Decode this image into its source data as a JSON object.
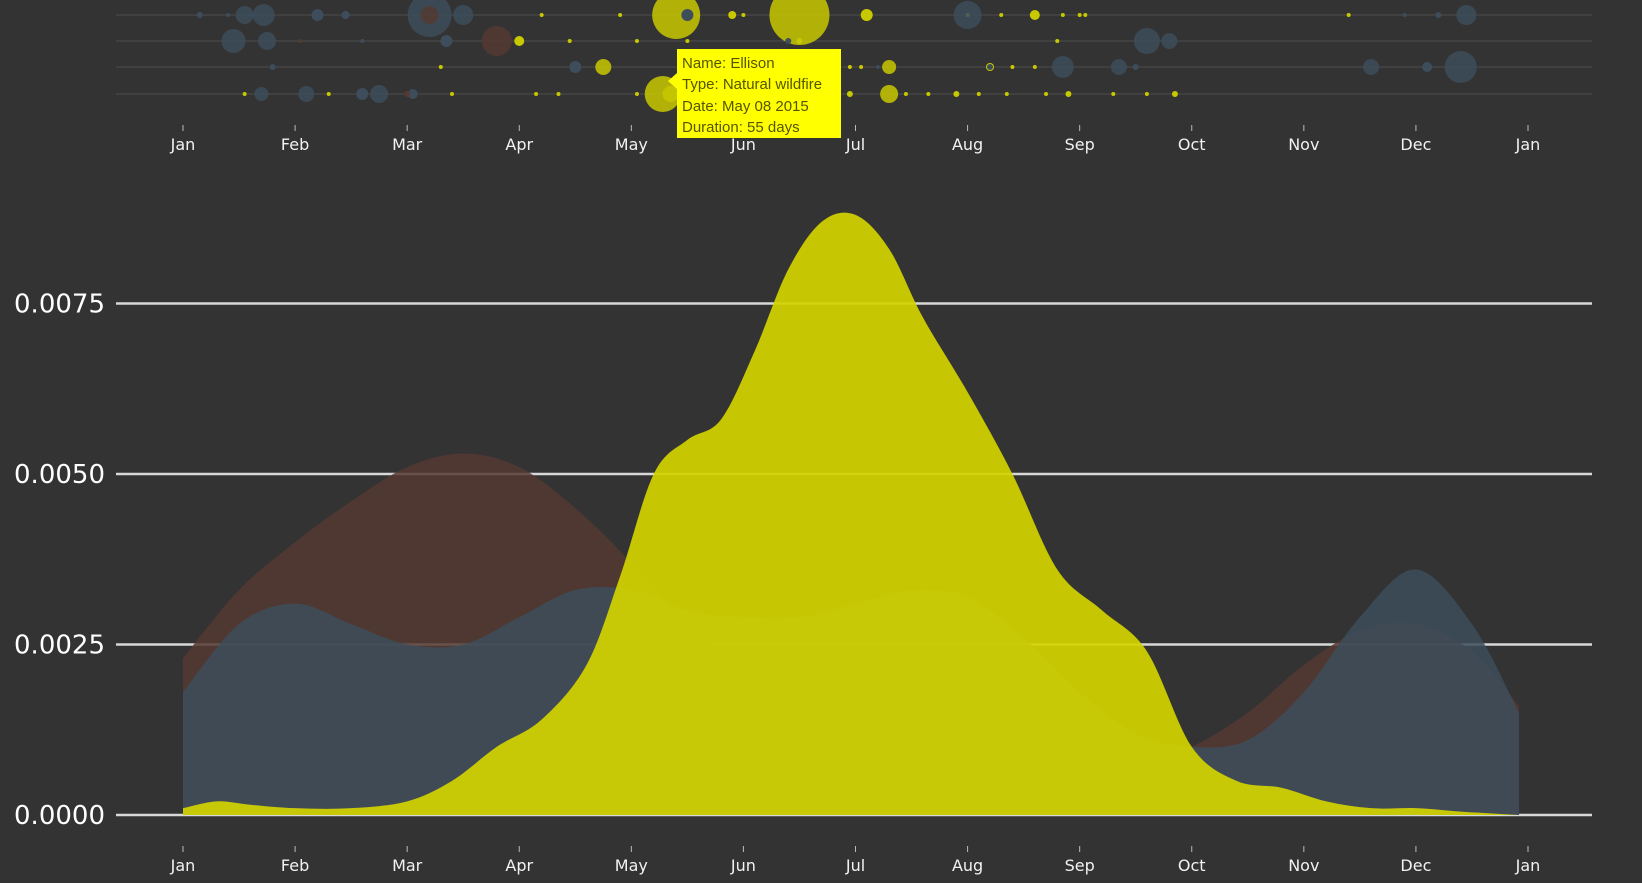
{
  "colors": {
    "background": "#333333",
    "gridline": "#d8d8d8",
    "axis_text": "#f2f2f2",
    "tooltip_bg": "#ffff00",
    "tooltip_text": "#555500"
  },
  "chart_data": [
    {
      "type": "scatter",
      "description_panel": "beeswarm of fires by date of year, 4 rows, bubble size = duration",
      "months": [
        "Jan",
        "Feb",
        "Mar",
        "Apr",
        "May",
        "Jun",
        "Jul",
        "Aug",
        "Sep",
        "Oct",
        "Nov",
        "Dec",
        "Jan"
      ],
      "series": [
        {
          "color": "#c8c800",
          "points": [
            {
              "m": 3.2,
              "row": 0,
              "r": 2
            },
            {
              "m": 3.9,
              "row": 0,
              "r": 2
            },
            {
              "m": 4.4,
              "row": 0,
              "r": 24
            },
            {
              "m": 4.9,
              "row": 0,
              "r": 4
            },
            {
              "m": 5.0,
              "row": 0,
              "r": 2
            },
            {
              "m": 5.5,
              "row": 0,
              "r": 30
            },
            {
              "m": 6.1,
              "row": 0,
              "r": 6
            },
            {
              "m": 7.0,
              "row": 0,
              "r": 2
            },
            {
              "m": 7.3,
              "row": 0,
              "r": 2
            },
            {
              "m": 7.6,
              "row": 0,
              "r": 5
            },
            {
              "m": 7.85,
              "row": 0,
              "r": 2
            },
            {
              "m": 8.0,
              "row": 0,
              "r": 2
            },
            {
              "m": 8.05,
              "row": 0,
              "r": 2
            },
            {
              "m": 10.4,
              "row": 0,
              "r": 2
            },
            {
              "m": 3.0,
              "row": 1,
              "r": 5
            },
            {
              "m": 3.45,
              "row": 1,
              "r": 2
            },
            {
              "m": 4.05,
              "row": 1,
              "r": 2
            },
            {
              "m": 4.5,
              "row": 1,
              "r": 2
            },
            {
              "m": 5.5,
              "row": 1,
              "r": 3
            },
            {
              "m": 7.8,
              "row": 1,
              "r": 2
            },
            {
              "m": 2.3,
              "row": 2,
              "r": 2
            },
            {
              "m": 3.75,
              "row": 2,
              "r": 8
            },
            {
              "m": 5.2,
              "row": 2,
              "r": 3
            },
            {
              "m": 5.95,
              "row": 2,
              "r": 2
            },
            {
              "m": 6.05,
              "row": 2,
              "r": 2
            },
            {
              "m": 6.3,
              "row": 2,
              "r": 7
            },
            {
              "m": 7.2,
              "row": 2,
              "r": 4
            },
            {
              "m": 7.4,
              "row": 2,
              "r": 2
            },
            {
              "m": 7.6,
              "row": 2,
              "r": 2
            },
            {
              "m": 0.55,
              "row": 3,
              "r": 2
            },
            {
              "m": 1.3,
              "row": 3,
              "r": 2
            },
            {
              "m": 2.0,
              "row": 3,
              "r": 2
            },
            {
              "m": 2.4,
              "row": 3,
              "r": 2
            },
            {
              "m": 3.15,
              "row": 3,
              "r": 2
            },
            {
              "m": 3.35,
              "row": 3,
              "r": 2
            },
            {
              "m": 4.05,
              "row": 3,
              "r": 2
            },
            {
              "m": 4.28,
              "row": 3,
              "r": 18
            },
            {
              "m": 4.35,
              "row": 3,
              "r": 8
            },
            {
              "m": 4.5,
              "row": 3,
              "r": 2
            },
            {
              "m": 5.3,
              "row": 3,
              "r": 2
            },
            {
              "m": 5.6,
              "row": 3,
              "r": 2
            },
            {
              "m": 5.8,
              "row": 3,
              "r": 4
            },
            {
              "m": 5.95,
              "row": 3,
              "r": 3
            },
            {
              "m": 6.3,
              "row": 3,
              "r": 9
            },
            {
              "m": 6.45,
              "row": 3,
              "r": 2
            },
            {
              "m": 6.65,
              "row": 3,
              "r": 2
            },
            {
              "m": 6.9,
              "row": 3,
              "r": 3
            },
            {
              "m": 7.1,
              "row": 3,
              "r": 2
            },
            {
              "m": 7.35,
              "row": 3,
              "r": 2
            },
            {
              "m": 7.7,
              "row": 3,
              "r": 2
            },
            {
              "m": 7.9,
              "row": 3,
              "r": 3
            },
            {
              "m": 8.3,
              "row": 3,
              "r": 2
            },
            {
              "m": 8.6,
              "row": 3,
              "r": 2
            },
            {
              "m": 8.85,
              "row": 3,
              "r": 3
            }
          ]
        },
        {
          "color": "#3d4d5c",
          "points": [
            {
              "m": 0.15,
              "row": 0,
              "r": 3
            },
            {
              "m": 0.4,
              "row": 0,
              "r": 2
            },
            {
              "m": 0.55,
              "row": 0,
              "r": 9
            },
            {
              "m": 0.72,
              "row": 0,
              "r": 11
            },
            {
              "m": 1.2,
              "row": 0,
              "r": 6
            },
            {
              "m": 1.45,
              "row": 0,
              "r": 4
            },
            {
              "m": 2.2,
              "row": 0,
              "r": 22
            },
            {
              "m": 2.5,
              "row": 0,
              "r": 10
            },
            {
              "m": 4.5,
              "row": 0,
              "r": 6
            },
            {
              "m": 7.0,
              "row": 0,
              "r": 14
            },
            {
              "m": 10.9,
              "row": 0,
              "r": 2
            },
            {
              "m": 11.2,
              "row": 0,
              "r": 3
            },
            {
              "m": 11.45,
              "row": 0,
              "r": 10
            },
            {
              "m": 0.45,
              "row": 1,
              "r": 12
            },
            {
              "m": 0.75,
              "row": 1,
              "r": 9
            },
            {
              "m": 1.6,
              "row": 1,
              "r": 2
            },
            {
              "m": 2.35,
              "row": 1,
              "r": 6
            },
            {
              "m": 5.4,
              "row": 1,
              "r": 3
            },
            {
              "m": 8.6,
              "row": 1,
              "r": 13
            },
            {
              "m": 8.8,
              "row": 1,
              "r": 8
            },
            {
              "m": 0.8,
              "row": 2,
              "r": 3
            },
            {
              "m": 3.5,
              "row": 2,
              "r": 6
            },
            {
              "m": 6.2,
              "row": 2,
              "r": 2
            },
            {
              "m": 7.2,
              "row": 2,
              "r": 3
            },
            {
              "m": 7.85,
              "row": 2,
              "r": 11
            },
            {
              "m": 8.35,
              "row": 2,
              "r": 8
            },
            {
              "m": 8.5,
              "row": 2,
              "r": 3
            },
            {
              "m": 10.6,
              "row": 2,
              "r": 8
            },
            {
              "m": 11.1,
              "row": 2,
              "r": 5
            },
            {
              "m": 11.4,
              "row": 2,
              "r": 16
            },
            {
              "m": 0.7,
              "row": 3,
              "r": 7
            },
            {
              "m": 1.1,
              "row": 3,
              "r": 8
            },
            {
              "m": 1.6,
              "row": 3,
              "r": 6
            },
            {
              "m": 1.75,
              "row": 3,
              "r": 9
            },
            {
              "m": 2.05,
              "row": 3,
              "r": 5
            }
          ]
        },
        {
          "color": "#553a33",
          "points": [
            {
              "m": 2.2,
              "row": 0,
              "r": 9
            },
            {
              "m": 2.8,
              "row": 1,
              "r": 15
            },
            {
              "m": 1.05,
              "row": 1,
              "r": 2
            },
            {
              "m": 2.0,
              "row": 3,
              "r": 3
            }
          ]
        }
      ]
    },
    {
      "type": "area",
      "months": [
        "Jan",
        "Feb",
        "Mar",
        "Apr",
        "May",
        "Jun",
        "Jul",
        "Aug",
        "Sep",
        "Oct",
        "Nov",
        "Dec",
        "Jan"
      ],
      "yticks": [
        "0.0000",
        "0.0025",
        "0.0050",
        "0.0075"
      ],
      "ylim": [
        0,
        0.0089
      ],
      "series": [
        {
          "color": "#553a33",
          "opacity": 0.85,
          "x": [
            0,
            0.5,
            1,
            1.5,
            2,
            2.5,
            3,
            3.5,
            4,
            4.5,
            5,
            5.5,
            6,
            6.5,
            7,
            7.5,
            8,
            8.5,
            9,
            9.5,
            10,
            10.5,
            11,
            11.5,
            11.92
          ],
          "y": [
            0.0023,
            0.0033,
            0.004,
            0.0046,
            0.0051,
            0.0053,
            0.0051,
            0.0045,
            0.0037,
            0.0028,
            0.0021,
            0.0016,
            0.0012,
            0.0009,
            0.0007,
            0.0006,
            0.0006,
            0.0007,
            0.001,
            0.0015,
            0.0022,
            0.0027,
            0.0028,
            0.0024,
            0.0016
          ]
        },
        {
          "color": "#3d4d5c",
          "opacity": 0.85,
          "x": [
            0,
            0.5,
            1,
            1.5,
            2,
            2.5,
            3,
            3.5,
            4,
            4.5,
            5,
            5.5,
            6,
            6.5,
            7,
            7.5,
            8,
            8.5,
            9,
            9.5,
            10,
            10.5,
            11,
            11.5,
            11.92
          ],
          "y": [
            0.0018,
            0.0028,
            0.0031,
            0.0028,
            0.0025,
            0.0025,
            0.0029,
            0.0033,
            0.0033,
            0.003,
            0.0029,
            0.0029,
            0.0031,
            0.0033,
            0.0032,
            0.0026,
            0.0018,
            0.0012,
            0.001,
            0.0011,
            0.0018,
            0.0029,
            0.0036,
            0.0028,
            0.0015
          ]
        },
        {
          "color": "#d2d200",
          "opacity": 0.93,
          "x": [
            0,
            0.3,
            0.6,
            1,
            1.5,
            2,
            2.4,
            2.8,
            3.2,
            3.6,
            3.9,
            4.2,
            4.5,
            4.8,
            5.1,
            5.4,
            5.7,
            6.0,
            6.3,
            6.6,
            7.0,
            7.4,
            7.8,
            8.2,
            8.6,
            9.0,
            9.4,
            9.8,
            10.2,
            10.6,
            11.0,
            11.4,
            11.92
          ],
          "y": [
            0.0001,
            0.0002,
            0.00015,
            0.0001,
            0.0001,
            0.0002,
            0.0005,
            0.001,
            0.0014,
            0.0022,
            0.0035,
            0.005,
            0.0055,
            0.0058,
            0.0068,
            0.008,
            0.0087,
            0.0088,
            0.0083,
            0.0073,
            0.0062,
            0.005,
            0.0036,
            0.003,
            0.0024,
            0.001,
            0.0005,
            0.0004,
            0.0002,
            0.0001,
            0.0001,
            5e-05,
            0.0
          ]
        }
      ]
    }
  ],
  "tooltip": {
    "name": "Name: Ellison",
    "type": "Type: Natural wildfire",
    "date": "Date: May 08 2015",
    "duration": "Duration: 55 days"
  }
}
